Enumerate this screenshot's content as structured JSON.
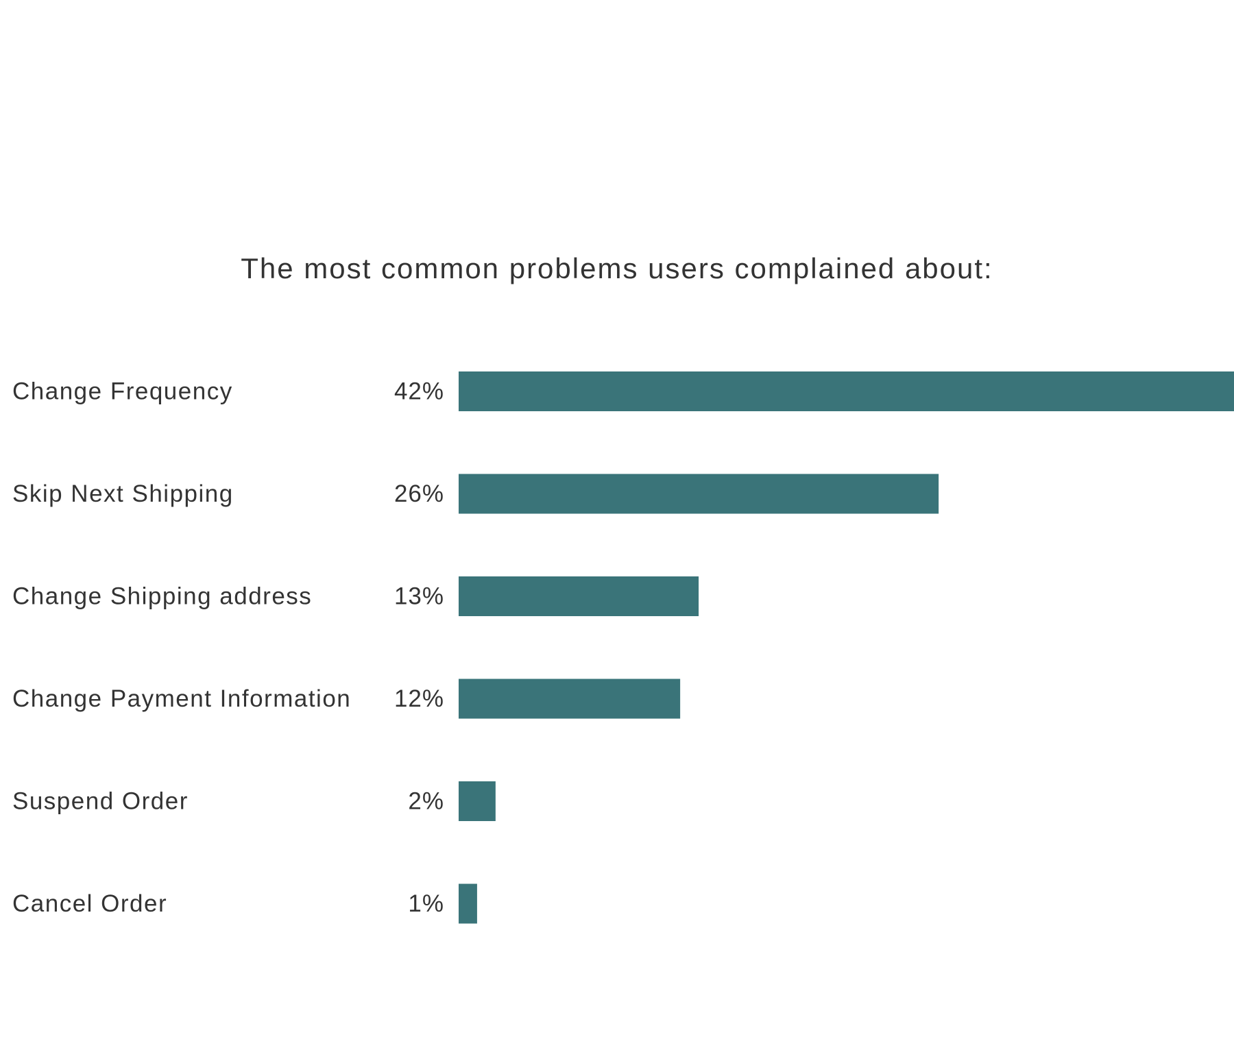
{
  "chart_data": {
    "type": "bar",
    "orientation": "horizontal",
    "title": "The most common problems users complained about:",
    "categories": [
      "Change Frequency",
      "Skip Next Shipping",
      "Change Shipping address",
      "Change Payment Information",
      "Suspend Order",
      "Cancel Order"
    ],
    "values": [
      42,
      26,
      13,
      12,
      2,
      1
    ],
    "value_labels": [
      "42%",
      "26%",
      "13%",
      "12%",
      "2%",
      "1%"
    ],
    "unit": "%",
    "bar_color": "#3a7479",
    "grid": false,
    "legend": "none",
    "xlim": [
      0,
      42
    ]
  }
}
